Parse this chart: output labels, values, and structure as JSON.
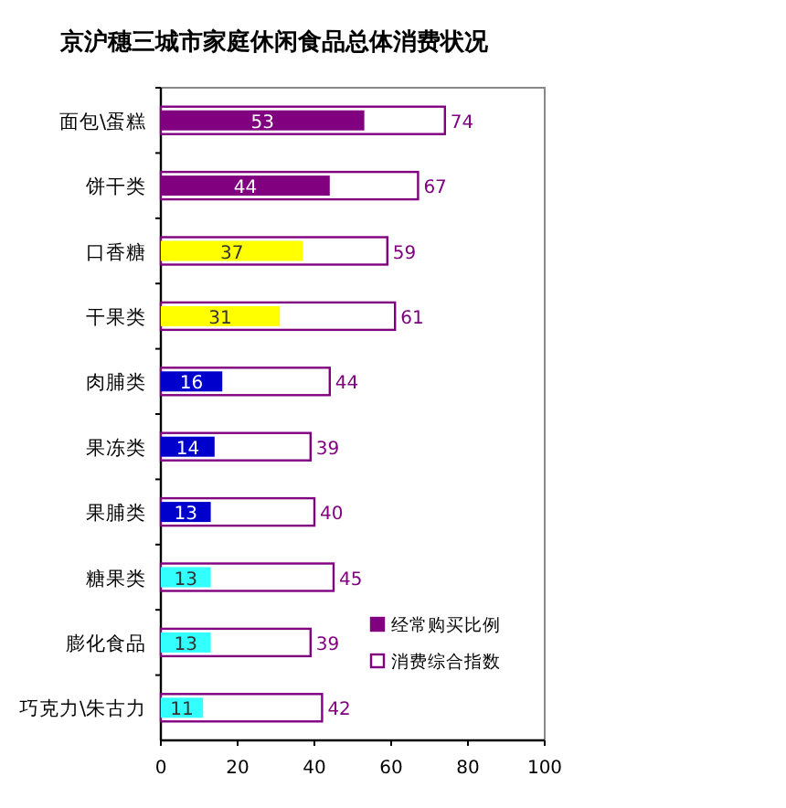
{
  "chart_data": {
    "type": "bar",
    "title": "京沪穗三城市家庭休闲食品总体消费状况",
    "orientation": "horizontal",
    "categories": [
      "面包\\蛋糕",
      "饼干类",
      "口香糖",
      "干果类",
      "肉脯类",
      "果冻类",
      "果脯类",
      "糖果类",
      "膨化食品",
      "巧克力\\朱古力"
    ],
    "series": [
      {
        "name": "消费综合指数",
        "color": "#800080",
        "values": [
          74,
          67,
          59,
          61,
          44,
          39,
          40,
          45,
          39,
          42
        ]
      },
      {
        "name": "经常购买比例",
        "color": "#800080",
        "colors": [
          "#800080",
          "#800080",
          "#ffff00",
          "#ffff00",
          "#0000cc",
          "#0000cc",
          "#0000cc",
          "#33ffff",
          "#33ffff",
          "#33ffff"
        ],
        "values": [
          53,
          44,
          37,
          31,
          16,
          14,
          13,
          13,
          13,
          11
        ]
      }
    ],
    "xlim": [
      0,
      100
    ],
    "xticks": [
      0,
      20,
      40,
      60,
      80,
      100
    ],
    "data_labels": true,
    "legend": "bottom right",
    "grid": false
  }
}
